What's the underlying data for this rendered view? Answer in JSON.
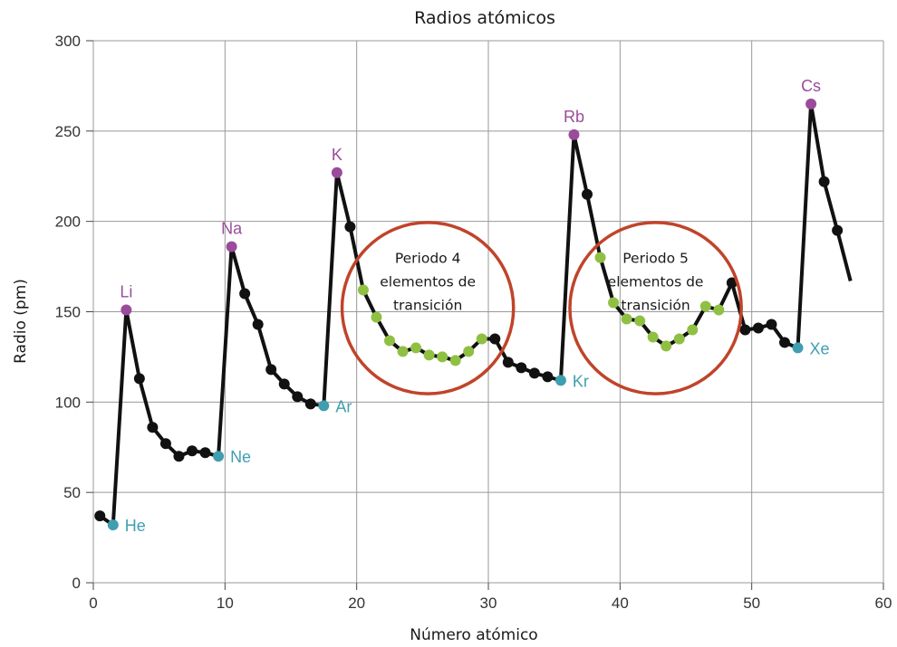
{
  "chart_data": {
    "type": "line",
    "title": "Radios atómicos",
    "xlabel": "Número atómico",
    "ylabel": "Radio (pm)",
    "xlim": [
      0,
      60
    ],
    "ylim": [
      0,
      300
    ],
    "xticks": [
      0,
      10,
      20,
      30,
      40,
      50,
      60
    ],
    "yticks": [
      0,
      50,
      100,
      150,
      200,
      250,
      300
    ],
    "grid": true,
    "colors": {
      "line": "#111111",
      "default_point": "#111111",
      "alkali_point": "#9b4b9b",
      "noble_gas_point": "#3f9fb0",
      "transition_point": "#8fc043",
      "circle": "#c0442a",
      "grid": "#999999"
    },
    "series": [
      {
        "x": [
          1,
          2,
          3,
          4,
          5,
          6,
          7,
          8,
          9,
          10,
          11,
          12,
          13,
          14,
          15,
          16,
          17,
          18,
          19,
          20,
          21,
          22,
          23,
          24,
          25,
          26,
          27,
          28,
          29,
          30,
          31,
          32,
          33,
          34,
          35,
          36,
          37,
          38,
          39,
          40,
          41,
          42,
          43,
          44,
          45,
          46,
          47,
          48,
          49,
          50,
          51,
          52,
          53,
          54,
          55,
          56,
          57,
          58
        ],
        "y": [
          37,
          32,
          151,
          113,
          86,
          77,
          70,
          73,
          72,
          70,
          186,
          160,
          143,
          118,
          110,
          103,
          99,
          98,
          227,
          197,
          162,
          147,
          134,
          128,
          130,
          126,
          125,
          123,
          128,
          135,
          135,
          122,
          119,
          116,
          114,
          112,
          248,
          215,
          180,
          155,
          146,
          145,
          136,
          131,
          135,
          140,
          153,
          151,
          166,
          140,
          141,
          143,
          133,
          130,
          265,
          222,
          195,
          167
        ],
        "categories_per_point": [
          "default",
          "noble",
          "alkali",
          "default",
          "default",
          "default",
          "default",
          "default",
          "default",
          "noble",
          "alkali",
          "default",
          "default",
          "default",
          "default",
          "default",
          "default",
          "noble",
          "alkali",
          "default",
          "transition",
          "transition",
          "transition",
          "transition",
          "transition",
          "transition",
          "transition",
          "transition",
          "transition",
          "transition",
          "default",
          "default",
          "default",
          "default",
          "default",
          "noble",
          "alkali",
          "default",
          "transition",
          "transition",
          "transition",
          "transition",
          "transition",
          "transition",
          "transition",
          "transition",
          "transition",
          "transition",
          "default",
          "default",
          "default",
          "default",
          "default",
          "noble",
          "alkali",
          "default",
          "default",
          "none"
        ]
      }
    ],
    "point_labels": [
      {
        "text": "He",
        "x": 2,
        "kind": "noble",
        "side": "right"
      },
      {
        "text": "Li",
        "x": 3,
        "kind": "alkali",
        "side": "above"
      },
      {
        "text": "Ne",
        "x": 10,
        "kind": "noble",
        "side": "right"
      },
      {
        "text": "Na",
        "x": 11,
        "kind": "alkali",
        "side": "above"
      },
      {
        "text": "Ar",
        "x": 18,
        "kind": "noble",
        "side": "right"
      },
      {
        "text": "K",
        "x": 19,
        "kind": "alkali",
        "side": "above"
      },
      {
        "text": "Kr",
        "x": 36,
        "kind": "noble",
        "side": "right"
      },
      {
        "text": "Rb",
        "x": 37,
        "kind": "alkali",
        "side": "above"
      },
      {
        "text": "Xe",
        "x": 54,
        "kind": "noble",
        "side": "right"
      },
      {
        "text": "Cs",
        "x": 55,
        "kind": "alkali",
        "side": "above"
      }
    ],
    "annotations": [
      {
        "lines": [
          "Periodo 4",
          "elementos de",
          "transición"
        ],
        "cx": 25.4,
        "cy": 152,
        "rx": 5.6,
        "ry": 54
      },
      {
        "lines": [
          "Periodo 5",
          "elementos de",
          "transición"
        ],
        "cx": 42.7,
        "cy": 152,
        "rx": 5.6,
        "ry": 54
      }
    ]
  }
}
